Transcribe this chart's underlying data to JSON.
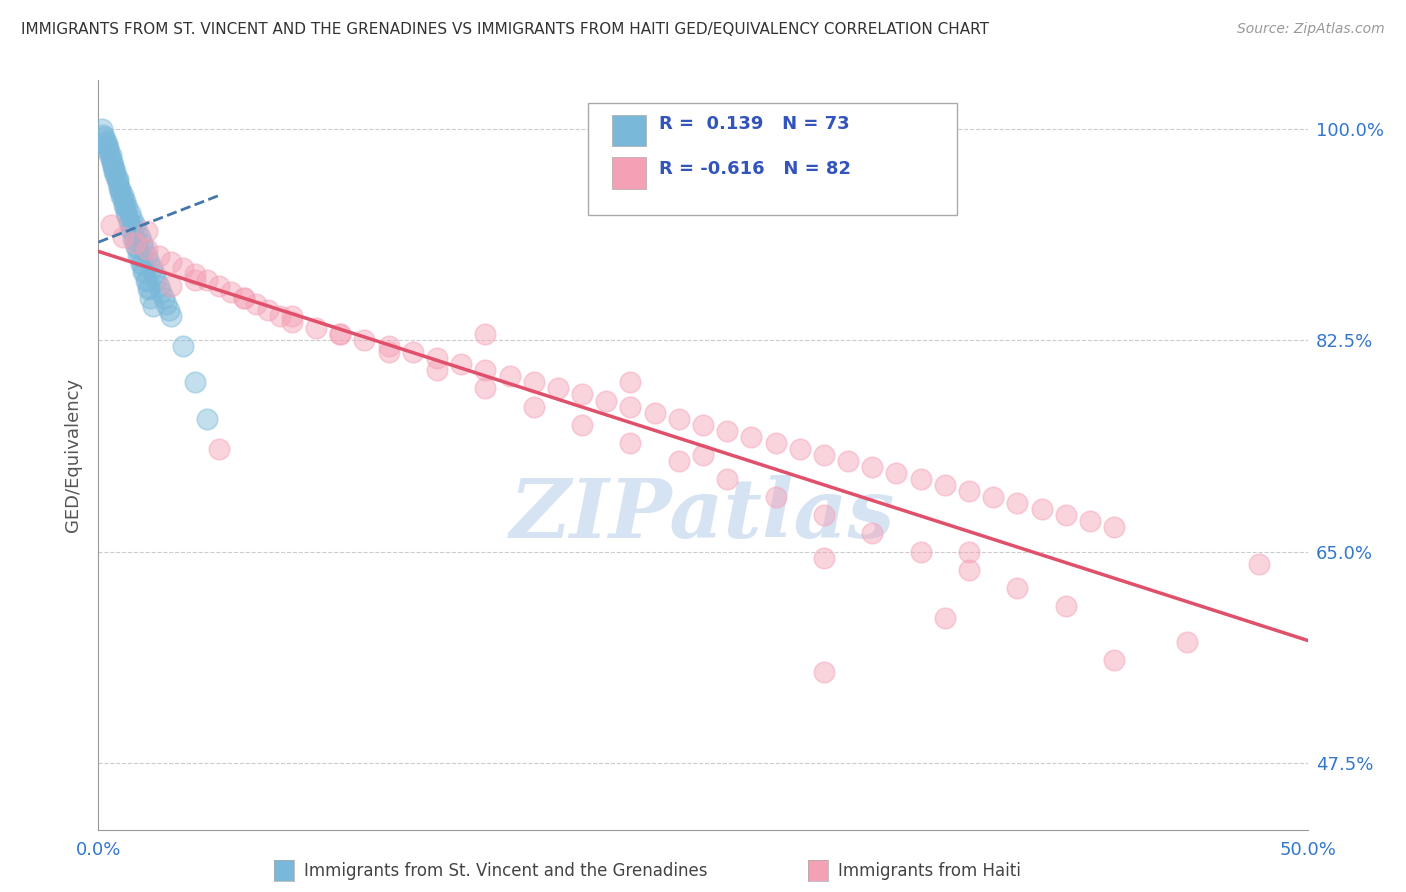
{
  "title": "IMMIGRANTS FROM ST. VINCENT AND THE GRENADINES VS IMMIGRANTS FROM HAITI GED/EQUIVALENCY CORRELATION CHART",
  "source": "Source: ZipAtlas.com",
  "ylabel": "GED/Equivalency",
  "yticks": [
    47.5,
    65.0,
    82.5,
    100.0
  ],
  "ytick_labels": [
    "47.5%",
    "65.0%",
    "82.5%",
    "100.0%"
  ],
  "xmin": 0.0,
  "xmax": 50.0,
  "ymin": 42.0,
  "ymax": 104.0,
  "blue_color": "#7ab8d9",
  "pink_color": "#f4a0b5",
  "blue_line_color": "#4477aa",
  "pink_line_color": "#e0506a",
  "legend_text_color": "#3355bb",
  "watermark": "ZIPatlas",
  "watermark_color": "#c5d8ee",
  "blue_scatter_x": [
    0.3,
    0.4,
    0.5,
    0.6,
    0.7,
    0.8,
    0.9,
    1.0,
    1.1,
    1.2,
    1.3,
    1.4,
    1.5,
    1.6,
    1.7,
    1.8,
    1.9,
    2.0,
    2.1,
    2.2,
    2.3,
    2.4,
    2.5,
    2.6,
    2.7,
    2.8,
    2.9,
    3.0,
    0.2,
    0.3,
    0.4,
    0.5,
    0.6,
    0.7,
    0.8,
    0.9,
    1.0,
    1.1,
    1.2,
    1.3,
    1.4,
    1.5,
    1.6,
    1.7,
    1.8,
    1.9,
    2.0,
    2.1,
    0.15,
    0.25,
    0.35,
    0.45,
    0.55,
    0.65,
    0.75,
    0.85,
    0.95,
    1.05,
    1.15,
    1.25,
    1.35,
    1.45,
    1.55,
    1.65,
    1.75,
    1.85,
    1.95,
    2.05,
    2.15,
    2.25,
    3.5,
    4.0,
    4.5
  ],
  "blue_scatter_y": [
    99.0,
    98.5,
    97.8,
    97.0,
    96.5,
    95.8,
    95.0,
    94.5,
    94.0,
    93.5,
    93.0,
    92.5,
    92.0,
    91.5,
    91.0,
    90.5,
    90.0,
    89.5,
    89.0,
    88.5,
    88.0,
    87.5,
    87.0,
    86.5,
    86.0,
    85.5,
    85.0,
    84.5,
    99.5,
    98.8,
    98.2,
    97.5,
    96.8,
    96.2,
    95.5,
    94.8,
    94.2,
    93.5,
    92.8,
    92.2,
    91.5,
    90.8,
    90.2,
    89.5,
    88.8,
    88.2,
    87.5,
    86.8,
    100.0,
    99.3,
    98.6,
    97.9,
    97.2,
    96.5,
    95.8,
    95.1,
    94.4,
    93.7,
    93.0,
    92.3,
    91.6,
    90.9,
    90.2,
    89.5,
    88.8,
    88.1,
    87.4,
    86.7,
    86.0,
    85.3,
    82.0,
    79.0,
    76.0
  ],
  "pink_scatter_x": [
    0.5,
    1.0,
    1.5,
    2.0,
    2.5,
    3.0,
    3.5,
    4.0,
    4.5,
    5.0,
    5.5,
    6.0,
    6.5,
    7.0,
    7.5,
    8.0,
    9.0,
    10.0,
    11.0,
    12.0,
    13.0,
    14.0,
    15.0,
    16.0,
    17.0,
    18.0,
    19.0,
    20.0,
    21.0,
    22.0,
    23.0,
    24.0,
    25.0,
    26.0,
    27.0,
    28.0,
    29.0,
    30.0,
    31.0,
    32.0,
    33.0,
    34.0,
    35.0,
    36.0,
    37.0,
    38.0,
    39.0,
    40.0,
    41.0,
    42.0,
    2.0,
    4.0,
    6.0,
    8.0,
    10.0,
    12.0,
    14.0,
    16.0,
    18.0,
    20.0,
    22.0,
    24.0,
    26.0,
    28.0,
    30.0,
    32.0,
    34.0,
    36.0,
    38.0,
    40.0,
    30.0,
    35.0,
    22.0,
    16.0,
    48.0,
    36.0,
    30.0,
    25.0,
    45.0,
    42.0,
    5.0,
    3.0
  ],
  "pink_scatter_y": [
    92.0,
    91.0,
    90.5,
    90.0,
    89.5,
    89.0,
    88.5,
    88.0,
    87.5,
    87.0,
    86.5,
    86.0,
    85.5,
    85.0,
    84.5,
    84.0,
    83.5,
    83.0,
    82.5,
    82.0,
    81.5,
    81.0,
    80.5,
    80.0,
    79.5,
    79.0,
    78.5,
    78.0,
    77.5,
    77.0,
    76.5,
    76.0,
    75.5,
    75.0,
    74.5,
    74.0,
    73.5,
    73.0,
    72.5,
    72.0,
    71.5,
    71.0,
    70.5,
    70.0,
    69.5,
    69.0,
    68.5,
    68.0,
    67.5,
    67.0,
    91.5,
    87.5,
    86.0,
    84.5,
    83.0,
    81.5,
    80.0,
    78.5,
    77.0,
    75.5,
    74.0,
    72.5,
    71.0,
    69.5,
    68.0,
    66.5,
    65.0,
    63.5,
    62.0,
    60.5,
    64.5,
    59.5,
    79.0,
    83.0,
    64.0,
    65.0,
    55.0,
    73.0,
    57.5,
    56.0,
    73.5,
    87.0
  ]
}
